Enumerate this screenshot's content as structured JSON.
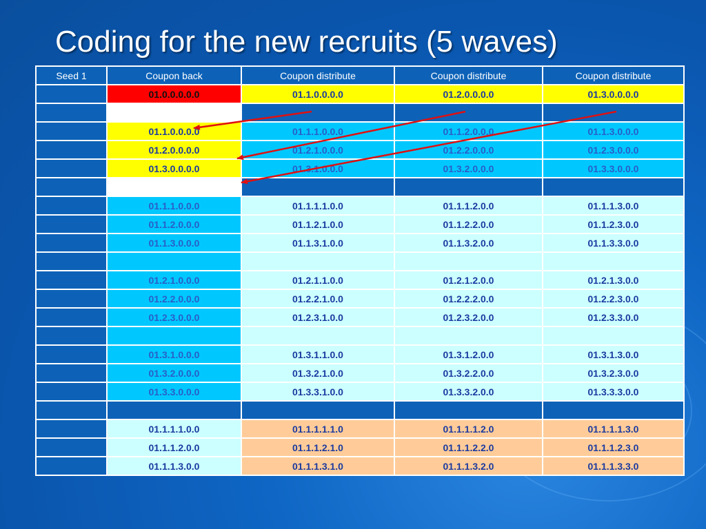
{
  "slide": {
    "title": "Coding for the new recruits (5 waves)"
  },
  "table": {
    "headers": [
      "Seed 1",
      "Coupon back",
      "Coupon distribute",
      "Coupon distribute",
      "Coupon distribute"
    ],
    "rows": [
      {
        "style": [
          "seed",
          "red",
          "yellow",
          "yellow",
          "yellow"
        ],
        "cells": [
          "",
          "01.0.0.0.0.0",
          "01.1.0.0.0.0",
          "01.2.0.0.0.0",
          "01.3.0.0.0.0"
        ]
      },
      {
        "style": [
          "seed",
          "white",
          "blue",
          "blue",
          "blue"
        ],
        "cells": [
          "",
          "",
          "",
          "",
          ""
        ]
      },
      {
        "style": [
          "seed",
          "yellow",
          "cyan",
          "cyan",
          "cyan"
        ],
        "cells": [
          "",
          "01.1.0.0.0.0",
          "01.1.1.0.0.0",
          "01.1.2.0.0.0",
          "01.1.3.0.0.0"
        ]
      },
      {
        "style": [
          "seed",
          "yellow",
          "cyan",
          "cyan",
          "cyan"
        ],
        "cells": [
          "",
          "01.2.0.0.0.0",
          "01.2.1.0.0.0",
          "01.2.2.0.0.0",
          "01.2.3.0.0.0"
        ]
      },
      {
        "style": [
          "seed",
          "yellow",
          "cyan",
          "cyan",
          "cyan"
        ],
        "cells": [
          "",
          "01.3.0.0.0.0",
          "01.3.1.0.0.0",
          "01.3.2.0.0.0",
          "01.3.3.0.0.0"
        ]
      },
      {
        "style": [
          "seed",
          "white",
          "blue",
          "blue",
          "blue"
        ],
        "cells": [
          "",
          "",
          "",
          "",
          ""
        ]
      },
      {
        "style": [
          "seed",
          "cyan",
          "light",
          "light",
          "light"
        ],
        "cells": [
          "",
          "01.1.1.0.0.0",
          "01.1.1.1.0.0",
          "01.1.1.2.0.0",
          "01.1.1.3.0.0"
        ]
      },
      {
        "style": [
          "seed",
          "cyan",
          "light",
          "light",
          "light"
        ],
        "cells": [
          "",
          "01.1.2.0.0.0",
          "01.1.2.1.0.0",
          "01.1.2.2.0.0",
          "01.1.2.3.0.0"
        ]
      },
      {
        "style": [
          "seed",
          "cyan",
          "light",
          "light",
          "light"
        ],
        "cells": [
          "",
          "01.1.3.0.0.0",
          "01.1.3.1.0.0",
          "01.1.3.2.0.0",
          "01.1.3.3.0.0"
        ]
      },
      {
        "style": [
          "seed",
          "cyan",
          "light",
          "light",
          "light"
        ],
        "cells": [
          "",
          "",
          "",
          "",
          ""
        ]
      },
      {
        "style": [
          "seed",
          "cyan",
          "light",
          "light",
          "light"
        ],
        "cells": [
          "",
          "01.2.1.0.0.0",
          "01.2.1.1.0.0",
          "01.2.1.2.0.0",
          "01.2.1.3.0.0"
        ]
      },
      {
        "style": [
          "seed",
          "cyan",
          "light",
          "light",
          "light"
        ],
        "cells": [
          "",
          "01.2.2.0.0.0",
          "01.2.2.1.0.0",
          "01.2.2.2.0.0",
          "01.2.2.3.0.0"
        ]
      },
      {
        "style": [
          "seed",
          "cyan",
          "light",
          "light",
          "light"
        ],
        "cells": [
          "",
          "01.2.3.0.0.0",
          "01.2.3.1.0.0",
          "01.2.3.2.0.0",
          "01.2.3.3.0.0"
        ]
      },
      {
        "style": [
          "seed",
          "cyan",
          "light",
          "light",
          "light"
        ],
        "cells": [
          "",
          "",
          "",
          "",
          ""
        ]
      },
      {
        "style": [
          "seed",
          "cyan",
          "light",
          "light",
          "light"
        ],
        "cells": [
          "",
          "01.3.1.0.0.0",
          "01.3.1.1.0.0",
          "01.3.1.2.0.0",
          "01.3.1.3.0.0"
        ]
      },
      {
        "style": [
          "seed",
          "cyan",
          "light",
          "light",
          "light"
        ],
        "cells": [
          "",
          "01.3.2.0.0.0",
          "01.3.2.1.0.0",
          "01.3.2.2.0.0",
          "01.3.2.3.0.0"
        ]
      },
      {
        "style": [
          "seed",
          "cyan",
          "light",
          "light",
          "light"
        ],
        "cells": [
          "",
          "01.3.3.0.0.0",
          "01.3.3.1.0.0",
          "01.3.3.2.0.0",
          "01.3.3.3.0.0"
        ]
      },
      {
        "style": [
          "seed",
          "blue",
          "blue",
          "blue",
          "blue"
        ],
        "cells": [
          "",
          "",
          "",
          "",
          ""
        ]
      },
      {
        "style": [
          "seed",
          "light",
          "peach",
          "peach",
          "peach"
        ],
        "cells": [
          "",
          "01.1.1.1.0.0",
          "01.1.1.1.1.0",
          "01.1.1.1.2.0",
          "01.1.1.1.3.0"
        ]
      },
      {
        "style": [
          "seed",
          "light",
          "peach",
          "peach",
          "peach"
        ],
        "cells": [
          "",
          "01.1.1.2.0.0",
          "01.1.1.2.1.0",
          "01.1.1.2.2.0",
          "01.1.1.2.3.0"
        ]
      },
      {
        "style": [
          "seed",
          "light",
          "peach",
          "peach",
          "peach"
        ],
        "cells": [
          "",
          "01.1.1.3.0.0",
          "01.1.1.3.1.0",
          "01.1.1.3.2.0",
          "01.1.1.3.3.0"
        ]
      }
    ]
  },
  "arrows": {
    "color": "#e01010"
  }
}
